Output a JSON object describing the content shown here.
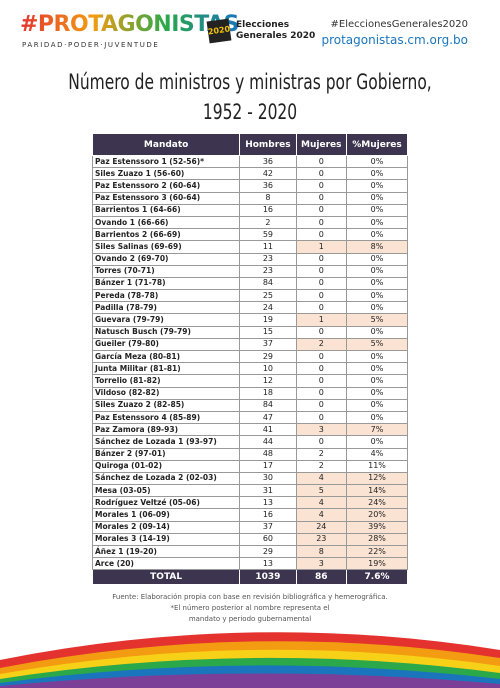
{
  "header": {
    "brand": "#PROTAGONISTAS",
    "tagline": "PARIDAD·PODER·JUVENTUDE",
    "logo_year": "2020",
    "logo_text": [
      "Elecciones",
      "Generales 2020"
    ],
    "hashtag": "#EleccionesGenerales2020",
    "website": "protagonistas.cm.org.bo"
  },
  "title": [
    "Número de ministros y ministras por Gobierno,",
    "1952 - 2020"
  ],
  "table": {
    "header": [
      "Mandato",
      "Hombres",
      "Mujeres",
      "%Mujeres"
    ],
    "rows": [
      [
        "Paz Estenssoro 1  (52-56)*",
        36,
        0,
        "0%"
      ],
      [
        "Siles Zuazo 1 (56-60)",
        42,
        0,
        "0%"
      ],
      [
        "Paz Estenssoro 2 (60-64)",
        36,
        0,
        "0%"
      ],
      [
        "Paz Estenssoro 3 (60-64)",
        8,
        0,
        "0%"
      ],
      [
        "Barrientos 1 (64-66)",
        16,
        0,
        "0%"
      ],
      [
        "Ovando 1 (66-66)",
        2,
        0,
        "0%"
      ],
      [
        "Barrientos 2 (66-69)",
        59,
        0,
        "0%"
      ],
      [
        "Siles Salinas (69-69)",
        11,
        1,
        "8%"
      ],
      [
        "Ovando 2 (69-70)",
        23,
        0,
        "0%"
      ],
      [
        "Torres (70-71)",
        23,
        0,
        "0%"
      ],
      [
        "Bánzer 1 (71-78)",
        84,
        0,
        "0%"
      ],
      [
        "Pereda (78-78)",
        25,
        0,
        "0%"
      ],
      [
        "Padilla (78-79)",
        24,
        0,
        "0%"
      ],
      [
        "Guevara (79-79)",
        19,
        1,
        "5%"
      ],
      [
        "Natusch Busch (79-79)",
        15,
        0,
        "0%"
      ],
      [
        "Gueiler (79-80)",
        37,
        2,
        "5%"
      ],
      [
        "García Meza (80-81)",
        29,
        0,
        "0%"
      ],
      [
        "Junta Militar (81-81)",
        10,
        0,
        "0%"
      ],
      [
        "Torrelio (81-82)",
        12,
        0,
        "0%"
      ],
      [
        "Vildoso (82-82)",
        18,
        0,
        "0%"
      ],
      [
        "Siles Zuazo 2 (82-85)",
        84,
        0,
        "0%"
      ],
      [
        "Paz Estenssoro 4 (85-89)",
        47,
        0,
        "0%"
      ],
      [
        "Paz Zamora (89-93)",
        41,
        3,
        "7%"
      ],
      [
        "Sánchez de Lozada 1 (93-97)",
        44,
        0,
        "0%"
      ],
      [
        "Bánzer 2 (97-01)",
        48,
        2,
        "4%"
      ],
      [
        "Quiroga (01-02)",
        17,
        2,
        "11%"
      ],
      [
        "Sánchez de Lozada 2 (02-03)",
        30,
        4,
        "12%"
      ],
      [
        "Mesa (03-05)",
        31,
        5,
        "14%"
      ],
      [
        "Rodríguez Veltzé (05-06)",
        13,
        4,
        "24%"
      ],
      [
        "Morales 1 (06-09)",
        16,
        4,
        "20%"
      ],
      [
        "Morales 2 (09-14)",
        37,
        24,
        "39%"
      ],
      [
        "Morales 3 (14-19)",
        60,
        23,
        "28%"
      ],
      [
        "Áñez 1 (19-20)",
        29,
        8,
        "22%"
      ],
      [
        "Arce (20)",
        13,
        3,
        "19%"
      ]
    ],
    "highlighted_rows": [
      7,
      13,
      15,
      22,
      26,
      27,
      28,
      29,
      30,
      31,
      32,
      33
    ],
    "total": [
      "TOTAL",
      1039,
      86,
      "7.6%"
    ]
  },
  "footer": {
    "source": "Fuente: Elaboración propia con base en revisión bibliográfica y hemerográfica.",
    "note": [
      "*El número posterior al nombre representa el",
      "mandato y periodo gubernamental"
    ]
  }
}
